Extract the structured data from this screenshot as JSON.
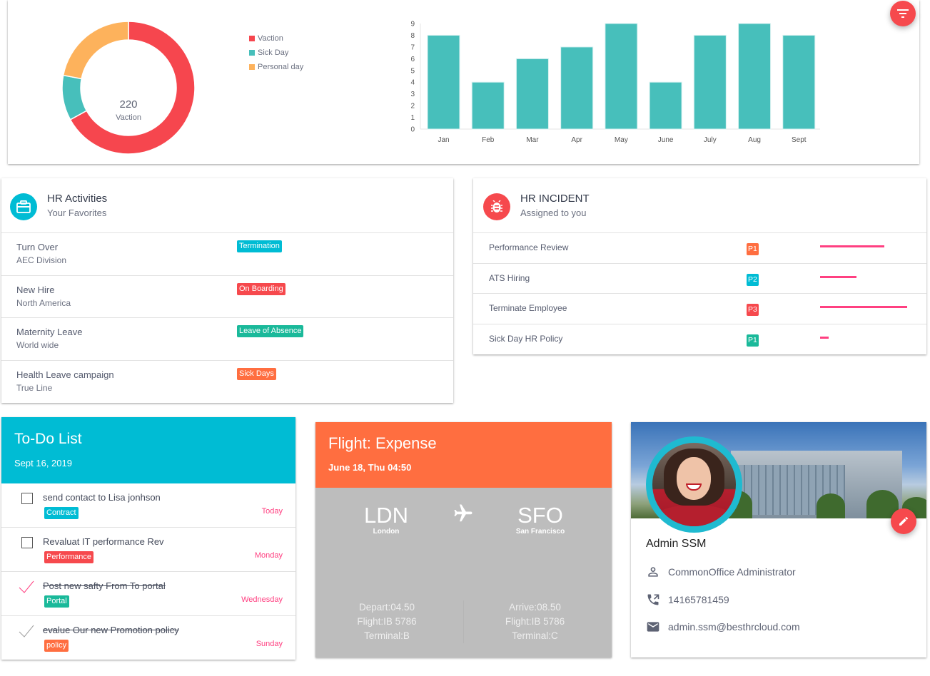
{
  "stats": {
    "donut_center_value": "220",
    "donut_center_label": "Vaction",
    "legend": [
      {
        "label": "Vaction",
        "color": "#f6464e"
      },
      {
        "label": "Sick Day",
        "color": "#47bfbb"
      },
      {
        "label": "Personal day",
        "color": "#fdb25c"
      }
    ],
    "filter_button_icon": "filter-icon"
  },
  "chart_data": [
    {
      "type": "pie",
      "title": "",
      "center_text": "220 Vaction",
      "categories": [
        "Vaction",
        "Sick Day",
        "Personal day"
      ],
      "values": [
        67,
        11,
        22
      ],
      "colors": [
        "#f6464e",
        "#47bfbb",
        "#fdb25c"
      ],
      "legend_position": "right"
    },
    {
      "type": "bar",
      "title": "",
      "categories": [
        "Jan",
        "Feb",
        "Mar",
        "Apr",
        "May",
        "June",
        "July",
        "Aug",
        "Sept"
      ],
      "values": [
        8,
        4,
        6,
        7,
        9,
        4,
        8,
        9,
        8
      ],
      "color": "#47bfbb",
      "xlabel": "",
      "ylabel": "",
      "ylim": [
        0,
        9
      ],
      "yticks": [
        0,
        1,
        2,
        3,
        4,
        5,
        6,
        7,
        8,
        9
      ],
      "grid": false
    }
  ],
  "hr_activities": {
    "title": "HR Activities",
    "subtitle": "Your Favorites",
    "icon": "briefcase-icon",
    "items": [
      {
        "title": "Turn Over",
        "subtitle": "AEC Division",
        "tag": "Termination",
        "tag_color": "#00bcd4"
      },
      {
        "title": "New Hire",
        "subtitle": "North America",
        "tag": "On Boarding",
        "tag_color": "#f6494d"
      },
      {
        "title": "Maternity Leave",
        "subtitle": "World wide",
        "tag": "Leave of Absence",
        "tag_color": "#1ab99a"
      },
      {
        "title": "Health Leave campaign",
        "subtitle": "True Line",
        "tag": "Sick Days",
        "tag_color": "#ff6e40"
      }
    ]
  },
  "hr_incident": {
    "title": "HR INCIDENT",
    "subtitle": "Assigned to you",
    "icon": "bug-icon",
    "items": [
      {
        "title": "Performance Review",
        "priority": "P1",
        "priority_color": "#ff6e40",
        "progress": 60
      },
      {
        "title": "ATS Hiring",
        "priority": "P2",
        "priority_color": "#00bcd4",
        "progress": 35
      },
      {
        "title": "Terminate Employee",
        "priority": "P3",
        "priority_color": "#f6494d",
        "progress": 81
      },
      {
        "title": "Sick Day HR Policy",
        "priority": "P1",
        "priority_color": "#1ab99a",
        "progress": 8
      }
    ]
  },
  "todo": {
    "title": "To-Do List",
    "date": "Sept 16, 2019",
    "items": [
      {
        "text": "send contact to Lisa jonhson",
        "tag": "Contract",
        "tag_color": "#00bcd4",
        "day": "Today",
        "done": false
      },
      {
        "text": "Revaluat IT performance Rev",
        "tag": "Performance",
        "tag_color": "#f6494d",
        "day": "Monday",
        "done": false
      },
      {
        "text": "Post new safty From To portal",
        "tag": "Portal",
        "tag_color": "#1ab99a",
        "day": "Wednesday",
        "done": true,
        "check_color": "#ff4081"
      },
      {
        "text": "evalue Our new Promotion policy",
        "tag": "policy",
        "tag_color": "#ff6e40",
        "day": "Sunday",
        "done": true,
        "check_color": "#9e9e9e"
      }
    ]
  },
  "flight": {
    "title": "Flight: Expense",
    "date": "June 18, Thu 04:50",
    "origin": {
      "code": "LDN",
      "city": "London"
    },
    "destination": {
      "code": "SFO",
      "city": "San Francisco"
    },
    "depart": {
      "time": "Depart:04.50",
      "flight": "Flight:IB 5786",
      "terminal": "Terminal:B"
    },
    "arrive": {
      "time": "Arrive:08.50",
      "flight": "Flight:IB 5786",
      "terminal": "Terminal:C"
    }
  },
  "profile": {
    "name": "Admin SSM",
    "role": "CommonOffice Administrator",
    "phone": "14165781459",
    "email": "admin.ssm@besthrcloud.com",
    "edit_icon": "pencil-icon"
  }
}
